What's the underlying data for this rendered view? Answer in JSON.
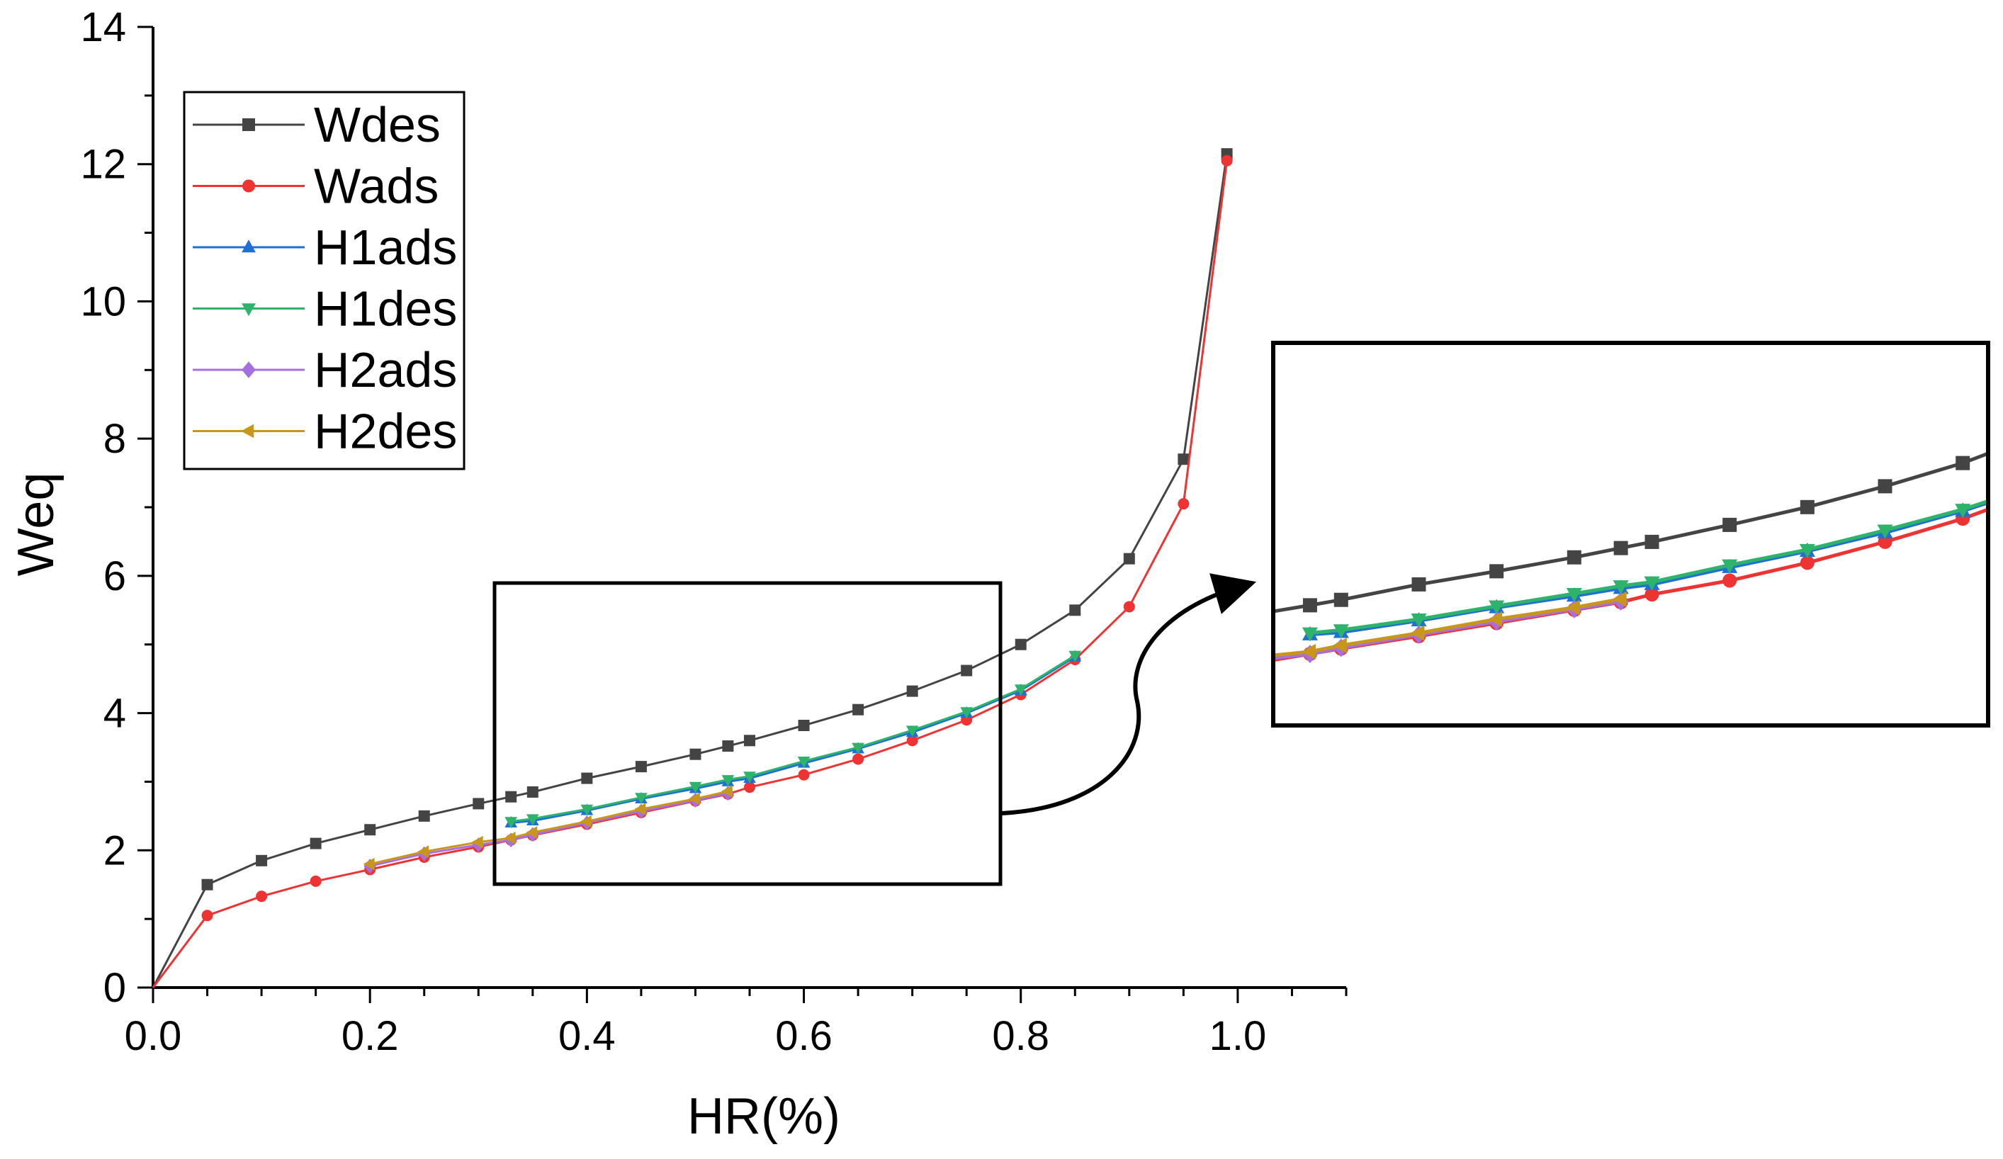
{
  "chart_data": {
    "type": "line",
    "title": "",
    "xlabel": "HR(%)",
    "ylabel": "Weq",
    "xlim": [
      0.0,
      1.1
    ],
    "ylim": [
      0,
      14
    ],
    "xticks": [
      "0.0",
      "0.2",
      "0.4",
      "0.6",
      "0.8",
      "1.0"
    ],
    "xtick_values": [
      0.0,
      0.2,
      0.4,
      0.6,
      0.8,
      1.0
    ],
    "yticks": [
      "0",
      "2",
      "4",
      "6",
      "8",
      "10",
      "12",
      "14"
    ],
    "ytick_values": [
      0,
      2,
      4,
      6,
      8,
      10,
      12,
      14
    ],
    "legend_position": "top-left",
    "series": [
      {
        "name": "Wdes",
        "color": "#444444",
        "marker": "square",
        "x": [
          0.0,
          0.05,
          0.1,
          0.15,
          0.2,
          0.25,
          0.3,
          0.33,
          0.35,
          0.4,
          0.45,
          0.5,
          0.53,
          0.55,
          0.6,
          0.65,
          0.7,
          0.75,
          0.8,
          0.85,
          0.9,
          0.95,
          0.99
        ],
        "y": [
          0.0,
          1.5,
          1.85,
          2.1,
          2.3,
          2.5,
          2.68,
          2.78,
          2.85,
          3.05,
          3.22,
          3.4,
          3.52,
          3.6,
          3.82,
          4.05,
          4.32,
          4.62,
          5.0,
          5.5,
          6.25,
          7.7,
          12.15
        ]
      },
      {
        "name": "Wads",
        "color": "#ee3333",
        "marker": "circle",
        "x": [
          0.0,
          0.05,
          0.1,
          0.15,
          0.2,
          0.25,
          0.3,
          0.33,
          0.35,
          0.4,
          0.45,
          0.5,
          0.53,
          0.55,
          0.6,
          0.65,
          0.7,
          0.75,
          0.8,
          0.85,
          0.9,
          0.95,
          0.99
        ],
        "y": [
          0.0,
          1.05,
          1.33,
          1.55,
          1.72,
          1.9,
          2.05,
          2.15,
          2.22,
          2.38,
          2.55,
          2.72,
          2.82,
          2.92,
          3.1,
          3.33,
          3.6,
          3.9,
          4.27,
          4.78,
          5.55,
          7.05,
          12.05
        ]
      },
      {
        "name": "H1ads",
        "color": "#1f6fd6",
        "marker": "triangle-up",
        "x": [
          0.33,
          0.35,
          0.4,
          0.45,
          0.5,
          0.53,
          0.55,
          0.6,
          0.65,
          0.7,
          0.75,
          0.8,
          0.85
        ],
        "y": [
          2.4,
          2.43,
          2.58,
          2.75,
          2.9,
          3.0,
          3.05,
          3.27,
          3.48,
          3.72,
          4.0,
          4.33,
          4.82
        ]
      },
      {
        "name": "H1des",
        "color": "#2db36a",
        "marker": "triangle-down",
        "x": [
          0.33,
          0.35,
          0.4,
          0.45,
          0.5,
          0.53,
          0.55,
          0.6,
          0.65,
          0.7,
          0.75,
          0.8,
          0.85
        ],
        "y": [
          2.42,
          2.46,
          2.6,
          2.77,
          2.93,
          3.03,
          3.08,
          3.3,
          3.5,
          3.75,
          4.02,
          4.35,
          4.84
        ]
      },
      {
        "name": "H2ads",
        "color": "#a66fe0",
        "marker": "diamond",
        "x": [
          0.2,
          0.25,
          0.3,
          0.33,
          0.35,
          0.4,
          0.45,
          0.5,
          0.53
        ],
        "y": [
          1.77,
          1.95,
          2.08,
          2.15,
          2.23,
          2.4,
          2.57,
          2.73,
          2.83
        ]
      },
      {
        "name": "H2des",
        "color": "#c7961a",
        "marker": "triangle-left",
        "x": [
          0.2,
          0.25,
          0.3,
          0.33,
          0.35,
          0.4,
          0.45,
          0.5,
          0.53
        ],
        "y": [
          1.8,
          1.98,
          2.12,
          2.18,
          2.26,
          2.42,
          2.6,
          2.75,
          2.86
        ]
      }
    ],
    "inset": {
      "source_xlim": [
        0.32,
        0.78
      ],
      "source_ylim": [
        1.5,
        5.9
      ],
      "description": "zoomed view of the boxed region"
    }
  }
}
